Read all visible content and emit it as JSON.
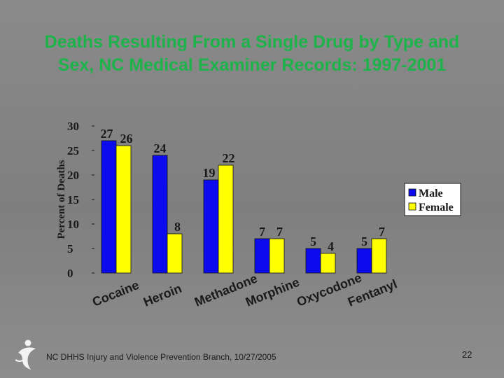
{
  "slide": {
    "title": "Deaths Resulting From a Single Drug by Type and Sex, NC Medical Examiner Records: 1997-2001",
    "footer": "NC DHHS Injury and Violence Prevention Branch, 10/27/2005",
    "page_number": "22",
    "logo_icon": "person-figure-logo-icon"
  },
  "chart_data": {
    "type": "bar",
    "title": "",
    "xlabel": "",
    "ylabel": "Percent of Deaths",
    "ylim": [
      0,
      30
    ],
    "yticks": [
      0,
      5,
      10,
      15,
      20,
      25,
      30
    ],
    "grid": false,
    "legend_position": "right",
    "categories": [
      "Cocaine",
      "Heroin",
      "Methadone",
      "Morphine",
      "Oxycodone",
      "Fentanyl"
    ],
    "series": [
      {
        "name": "Male",
        "color": "#0b0bee",
        "values": [
          27,
          24,
          19,
          7,
          5,
          5
        ]
      },
      {
        "name": "Female",
        "color": "#ffff00",
        "values": [
          26,
          8,
          22,
          7,
          4,
          7
        ]
      }
    ]
  }
}
